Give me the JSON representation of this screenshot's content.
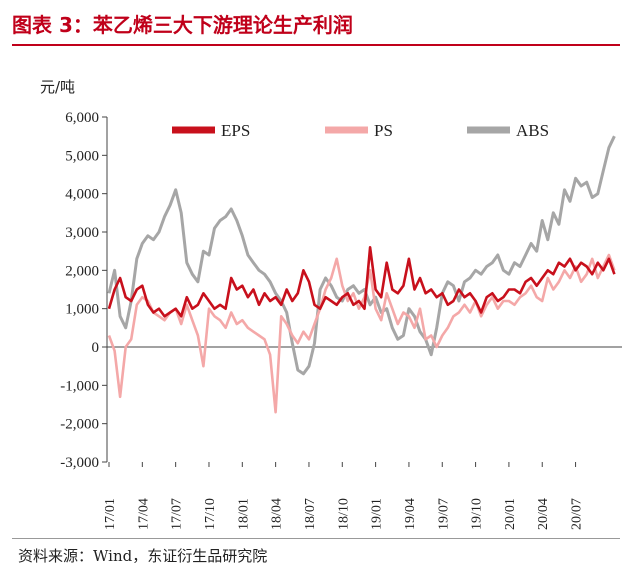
{
  "header": {
    "title": "图表 3：苯乙烯三大下游理论生产利润"
  },
  "footer": {
    "source": "资料来源：Wind，东证衍生品研究院"
  },
  "colors": {
    "title": "#c0001a",
    "eps": "#c8101c",
    "ps": "#f4a8a8",
    "abs": "#a6a6a6"
  },
  "chart_data": {
    "type": "line",
    "title": "苯乙烯三大下游理论生产利润",
    "ylabel": "元/吨",
    "xlabel": "",
    "ylim": [
      -3000,
      6000
    ],
    "yticks": [
      6000,
      5000,
      4000,
      3000,
      2000,
      1000,
      0,
      -1000,
      -2000,
      -3000
    ],
    "ytick_labels": [
      "6,000",
      "5,000",
      "4,000",
      "3,000",
      "2,000",
      "1,000",
      "0",
      "-1,000",
      "-2,000",
      "-3,000"
    ],
    "x_index_range": [
      0,
      46
    ],
    "xtick_labels": [
      "17/01",
      "17/04",
      "17/07",
      "17/10",
      "18/01",
      "18/04",
      "18/07",
      "18/10",
      "19/01",
      "19/04",
      "19/07",
      "19/10",
      "20/01",
      "20/04",
      "20/07"
    ],
    "xtick_positions": [
      0,
      3,
      6,
      9,
      12,
      15,
      18,
      21,
      24,
      27,
      30,
      33,
      36,
      39,
      42
    ],
    "legend": [
      "EPS",
      "PS",
      "ABS"
    ],
    "legend_position": "top",
    "series": [
      {
        "name": "EPS",
        "x": [
          0,
          0.5,
          1,
          1.5,
          2,
          2.5,
          3,
          3.5,
          4,
          4.5,
          5,
          5.5,
          6,
          6.5,
          7,
          7.5,
          8,
          8.5,
          9,
          9.5,
          10,
          10.5,
          11,
          11.5,
          12,
          12.5,
          13,
          13.5,
          14,
          14.5,
          15,
          15.5,
          16,
          16.5,
          17,
          17.5,
          18,
          18.5,
          19,
          19.5,
          20,
          20.5,
          21,
          21.5,
          22,
          22.5,
          23,
          23.5,
          24,
          24.5,
          25,
          25.5,
          26,
          26.5,
          27,
          27.5,
          28,
          28.5,
          29,
          29.5,
          30,
          30.5,
          31,
          31.5,
          32,
          32.5,
          33,
          33.5,
          34,
          34.5,
          35,
          35.5,
          36,
          36.5,
          37,
          37.5,
          38,
          38.5,
          39,
          39.5,
          40,
          40.5,
          41,
          41.5,
          42,
          42.5,
          43,
          43.5,
          44,
          44.5,
          45,
          45.5
        ],
        "values": [
          1000,
          1500,
          1800,
          1300,
          1200,
          1500,
          1600,
          1100,
          900,
          1000,
          800,
          900,
          1000,
          800,
          1300,
          1000,
          1100,
          1400,
          1200,
          1000,
          1100,
          1000,
          1800,
          1500,
          1600,
          1300,
          1500,
          1100,
          1400,
          1200,
          1300,
          1100,
          1500,
          1200,
          1400,
          2000,
          1700,
          1100,
          1000,
          1300,
          1200,
          1100,
          1300,
          1400,
          1100,
          1200,
          1000,
          2600,
          1500,
          1300,
          2200,
          1500,
          1400,
          1600,
          2300,
          1500,
          1800,
          1400,
          1500,
          1300,
          1400,
          1100,
          1200,
          1500,
          1300,
          1400,
          1200,
          900,
          1300,
          1400,
          1200,
          1300,
          1500,
          1500,
          1400,
          1700,
          1800,
          1600,
          1800,
          2000,
          1900,
          2200,
          2100,
          2300,
          2000,
          2200,
          2100,
          1900,
          2200,
          2000,
          2300,
          1900
        ]
      },
      {
        "name": "PS",
        "x": [
          0,
          0.5,
          1,
          1.5,
          2,
          2.5,
          3,
          3.5,
          4,
          4.5,
          5,
          5.5,
          6,
          6.5,
          7,
          7.5,
          8,
          8.5,
          9,
          9.5,
          10,
          10.5,
          11,
          11.5,
          12,
          12.5,
          13,
          13.5,
          14,
          14.5,
          15,
          15.5,
          16,
          16.5,
          17,
          17.5,
          18,
          18.5,
          19,
          19.5,
          20,
          20.5,
          21,
          21.5,
          22,
          22.5,
          23,
          23.5,
          24,
          24.5,
          25,
          25.5,
          26,
          26.5,
          27,
          27.5,
          28,
          28.5,
          29,
          29.5,
          30,
          30.5,
          31,
          31.5,
          32,
          32.5,
          33,
          33.5,
          34,
          34.5,
          35,
          35.5,
          36,
          36.5,
          37,
          37.5,
          38,
          38.5,
          39,
          39.5,
          40,
          40.5,
          41,
          41.5,
          42,
          42.5,
          43,
          43.5,
          44,
          44.5,
          45,
          45.5
        ],
        "values": [
          300,
          -100,
          -1300,
          0,
          200,
          1100,
          1300,
          1200,
          900,
          800,
          700,
          900,
          1000,
          600,
          1100,
          700,
          300,
          -500,
          1000,
          800,
          700,
          500,
          900,
          600,
          700,
          500,
          400,
          300,
          200,
          -200,
          -1700,
          800,
          600,
          300,
          100,
          400,
          200,
          600,
          1000,
          1500,
          1800,
          2300,
          1600,
          1200,
          1400,
          1000,
          1300,
          2000,
          1000,
          700,
          1400,
          1000,
          600,
          900,
          800,
          500,
          1000,
          200,
          300,
          0,
          300,
          500,
          800,
          900,
          1100,
          900,
          1200,
          800,
          1100,
          1300,
          1000,
          1200,
          1200,
          1100,
          1300,
          1400,
          1600,
          1300,
          1200,
          1800,
          1500,
          1700,
          2000,
          1800,
          2100,
          1700,
          1900,
          2300,
          1800,
          2100,
          2400,
          2000
        ]
      },
      {
        "name": "ABS",
        "x": [
          0,
          0.5,
          1,
          1.5,
          2,
          2.5,
          3,
          3.5,
          4,
          4.5,
          5,
          5.5,
          6,
          6.5,
          7,
          7.5,
          8,
          8.5,
          9,
          9.5,
          10,
          10.5,
          11,
          11.5,
          12,
          12.5,
          13,
          13.5,
          14,
          14.5,
          15,
          15.5,
          16,
          16.5,
          17,
          17.5,
          18,
          18.5,
          19,
          19.5,
          20,
          20.5,
          21,
          21.5,
          22,
          22.5,
          23,
          23.5,
          24,
          24.5,
          25,
          25.5,
          26,
          26.5,
          27,
          27.5,
          28,
          28.5,
          29,
          29.5,
          30,
          30.5,
          31,
          31.5,
          32,
          32.5,
          33,
          33.5,
          34,
          34.5,
          35,
          35.5,
          36,
          36.5,
          37,
          37.5,
          38,
          38.5,
          39,
          39.5,
          40,
          40.5,
          41,
          41.5,
          42,
          42.5,
          43,
          43.5,
          44,
          44.5,
          45,
          45.5
        ],
        "values": [
          1400,
          2000,
          800,
          500,
          1200,
          2300,
          2700,
          2900,
          2800,
          3000,
          3400,
          3700,
          4100,
          3500,
          2200,
          1900,
          1700,
          2500,
          2400,
          3100,
          3300,
          3400,
          3600,
          3300,
          2900,
          2400,
          2200,
          2000,
          1900,
          1700,
          1400,
          1200,
          900,
          100,
          -600,
          -700,
          -500,
          100,
          1500,
          1800,
          1600,
          1300,
          1200,
          1500,
          1600,
          1400,
          1500,
          1100,
          1300,
          900,
          1000,
          500,
          200,
          300,
          1000,
          800,
          400,
          200,
          -200,
          500,
          1400,
          1700,
          1600,
          1200,
          1700,
          1800,
          2000,
          1900,
          2100,
          2200,
          2400,
          2000,
          1900,
          2200,
          2100,
          2400,
          2700,
          2500,
          3300,
          2800,
          3500,
          3200,
          4100,
          3800,
          4400,
          4200,
          4300,
          3900,
          4000,
          4600,
          5200,
          5500
        ]
      }
    ]
  }
}
